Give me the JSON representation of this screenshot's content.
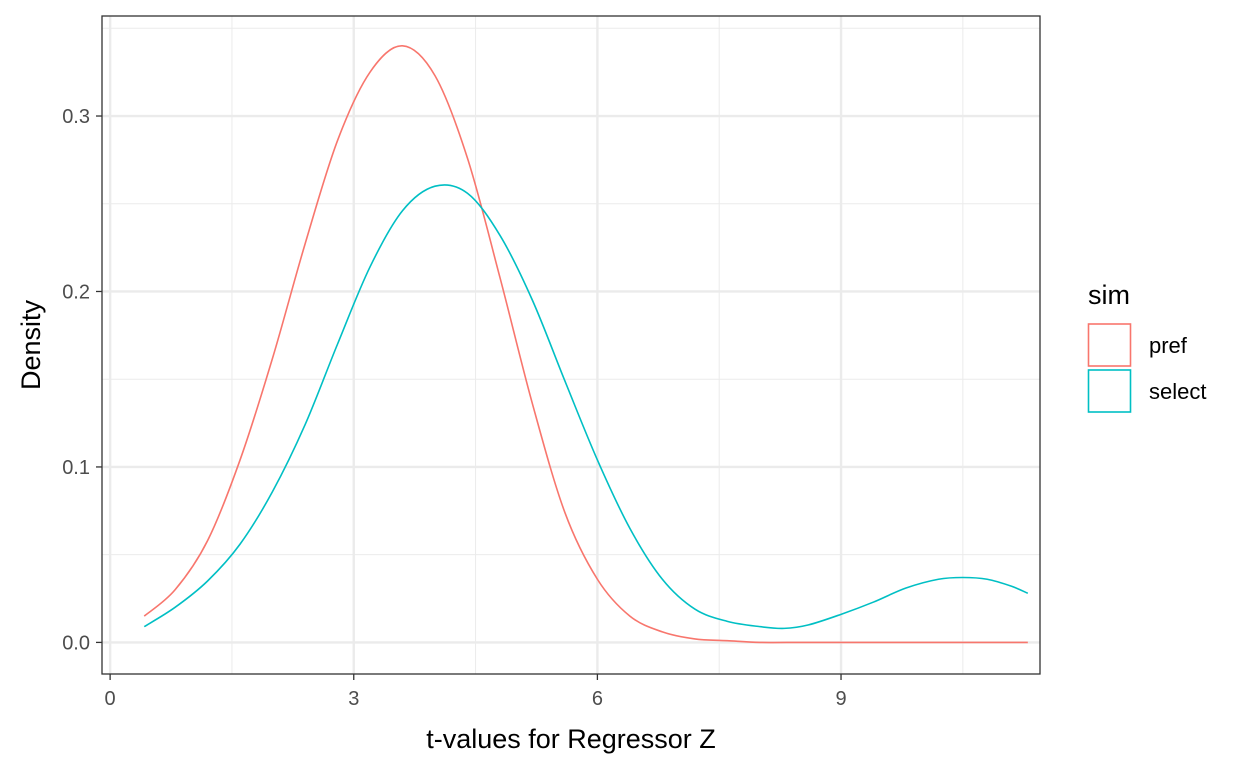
{
  "chart_data": {
    "type": "line",
    "xlabel": "t-values for Regressor Z",
    "ylabel": "Density",
    "xlim": [
      -0.1,
      11.45
    ],
    "ylim": [
      -0.018,
      0.357
    ],
    "x_ticks": [
      0,
      3,
      6,
      9
    ],
    "x_tick_labels": [
      "0",
      "3",
      "6",
      "9"
    ],
    "y_ticks": [
      0.0,
      0.1,
      0.2,
      0.3
    ],
    "y_tick_labels": [
      "0.0",
      "0.1",
      "0.2",
      "0.3"
    ],
    "grid": true,
    "legend": {
      "title": "sim",
      "position": "right"
    },
    "series": [
      {
        "name": "pref",
        "color": "#F8766D",
        "x": [
          0.42,
          0.8,
          1.2,
          1.6,
          2.0,
          2.4,
          2.8,
          3.2,
          3.6,
          4.0,
          4.4,
          4.8,
          5.2,
          5.6,
          6.0,
          6.4,
          6.8,
          7.2,
          7.6,
          8.0,
          8.5,
          9.0,
          9.5,
          10.0,
          10.5,
          11.0,
          11.3
        ],
        "y": [
          0.015,
          0.03,
          0.058,
          0.104,
          0.162,
          0.227,
          0.286,
          0.325,
          0.34,
          0.323,
          0.276,
          0.208,
          0.136,
          0.074,
          0.036,
          0.015,
          0.006,
          0.002,
          0.001,
          0.0,
          0.0,
          0.0,
          0.0,
          0.0,
          0.0,
          0.0,
          0.0
        ]
      },
      {
        "name": "select",
        "color": "#00BFC4",
        "x": [
          0.42,
          0.8,
          1.2,
          1.6,
          2.0,
          2.4,
          2.8,
          3.2,
          3.6,
          4.0,
          4.4,
          4.8,
          5.2,
          5.6,
          6.0,
          6.4,
          6.8,
          7.2,
          7.6,
          8.0,
          8.3,
          8.6,
          9.0,
          9.4,
          9.8,
          10.2,
          10.5,
          10.8,
          11.1,
          11.3
        ],
        "y": [
          0.009,
          0.02,
          0.035,
          0.056,
          0.086,
          0.124,
          0.17,
          0.214,
          0.246,
          0.26,
          0.256,
          0.232,
          0.195,
          0.149,
          0.104,
          0.065,
          0.036,
          0.019,
          0.012,
          0.009,
          0.008,
          0.01,
          0.016,
          0.023,
          0.031,
          0.036,
          0.037,
          0.036,
          0.032,
          0.028
        ]
      }
    ]
  }
}
